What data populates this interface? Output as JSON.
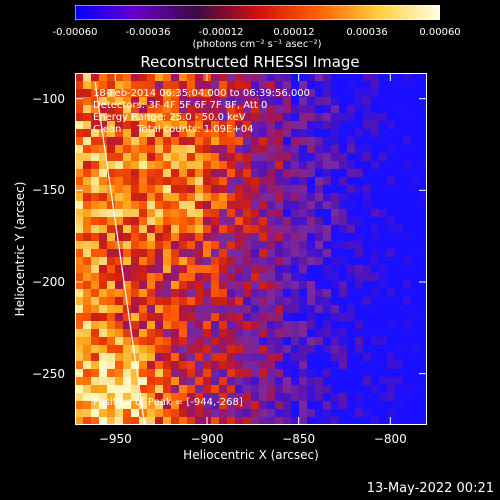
{
  "colorbar": {
    "ticks": [
      "-0.00060",
      "-0.00036",
      "-0.00012",
      "0.00012",
      "0.00036",
      "0.00060"
    ],
    "units": "(photons cm⁻² s⁻¹ asec⁻²)",
    "colors": [
      "#0000ff",
      "#6a00c8",
      "#3b0a45",
      "#d01010",
      "#ff6000",
      "#ffd040",
      "#ffffe0"
    ]
  },
  "title": "Reconstructed RHESSI Image",
  "annotations": {
    "time": "18-Feb-2014 06:35:04.000 to 06:39:56.000",
    "detectors": "Detectors: 3F 4F 5F 6F 7F 8F, Att 0",
    "energy": "Energy Range: 25.0 - 50.0 keV",
    "clean": "Clean     Total counts: 1.09E+04",
    "peak": "Position of Peak = [-944,-268]"
  },
  "footer_date": "13-May-2022 00:21",
  "chart_data": {
    "type": "heatmap",
    "title": "Reconstructed RHESSI Image",
    "xlabel": "Heliocentric X (arcsec)",
    "ylabel": "Heliocentric Y (arcsec)",
    "xlim": [
      -972,
      -780
    ],
    "ylim": [
      -278,
      -86
    ],
    "xticks": [
      -950,
      -900,
      -850,
      -800
    ],
    "yticks": [
      -100,
      -150,
      -200,
      -250
    ],
    "colorbar_range": [
      -0.0006,
      0.0006
    ],
    "peak": {
      "x": -944,
      "y": -268
    },
    "limb_line": [
      [
        -961,
        -91
      ],
      [
        -934,
        -278
      ]
    ]
  }
}
